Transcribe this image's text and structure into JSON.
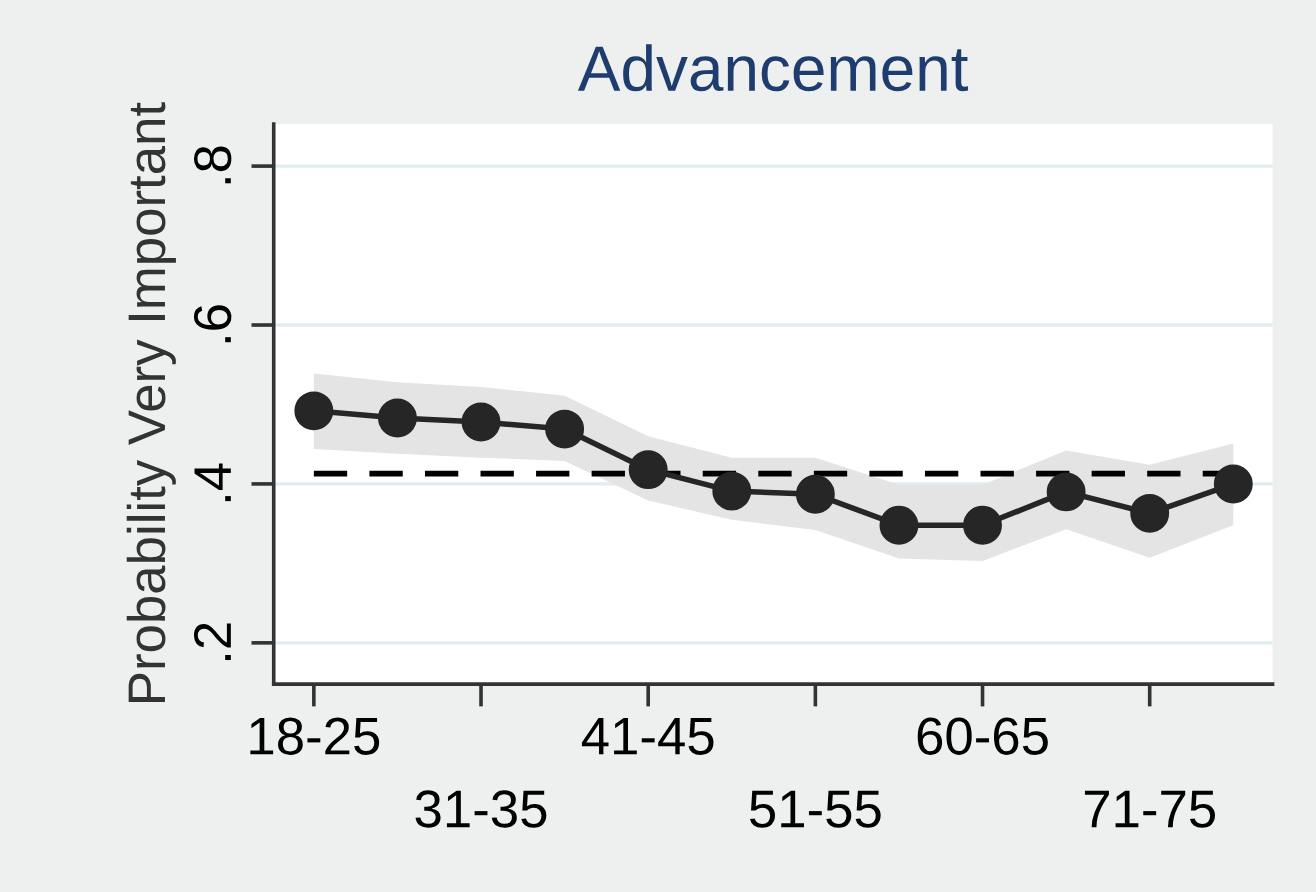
{
  "chart_data": {
    "type": "line",
    "title": "Advancement",
    "ylabel": "Probability Very Important",
    "categories": [
      "18-25",
      null,
      "31-35",
      null,
      "41-45",
      null,
      "51-55",
      null,
      "60-65",
      null,
      "71-75",
      null
    ],
    "series": [
      {
        "color": "#262626",
        "values": [
          0.492,
          0.483,
          0.478,
          0.469,
          0.418,
          0.391,
          0.387,
          0.348,
          0.348,
          0.39,
          0.363,
          0.4
        ],
        "lower": [
          0.444,
          0.438,
          0.433,
          0.429,
          0.379,
          0.355,
          0.342,
          0.306,
          0.303,
          0.343,
          0.307,
          0.348
        ],
        "upper": [
          0.539,
          0.528,
          0.522,
          0.511,
          0.46,
          0.433,
          0.433,
          0.399,
          0.399,
          0.442,
          0.424,
          0.451
        ]
      }
    ],
    "ylim": [
      0.148,
      0.853
    ],
    "yticks": [
      {
        "value": 0.2,
        "label": ".2"
      },
      {
        "value": 0.4,
        "label": ".4"
      },
      {
        "value": 0.6,
        "label": ".6"
      },
      {
        "value": 0.8,
        "label": ".8"
      }
    ],
    "ref_lines": [
      {
        "axis": "y",
        "value": 0.413,
        "color": "#000000",
        "line_style": "dashed"
      }
    ],
    "grid": "y",
    "marker": "circle",
    "line_style": "solid"
  }
}
